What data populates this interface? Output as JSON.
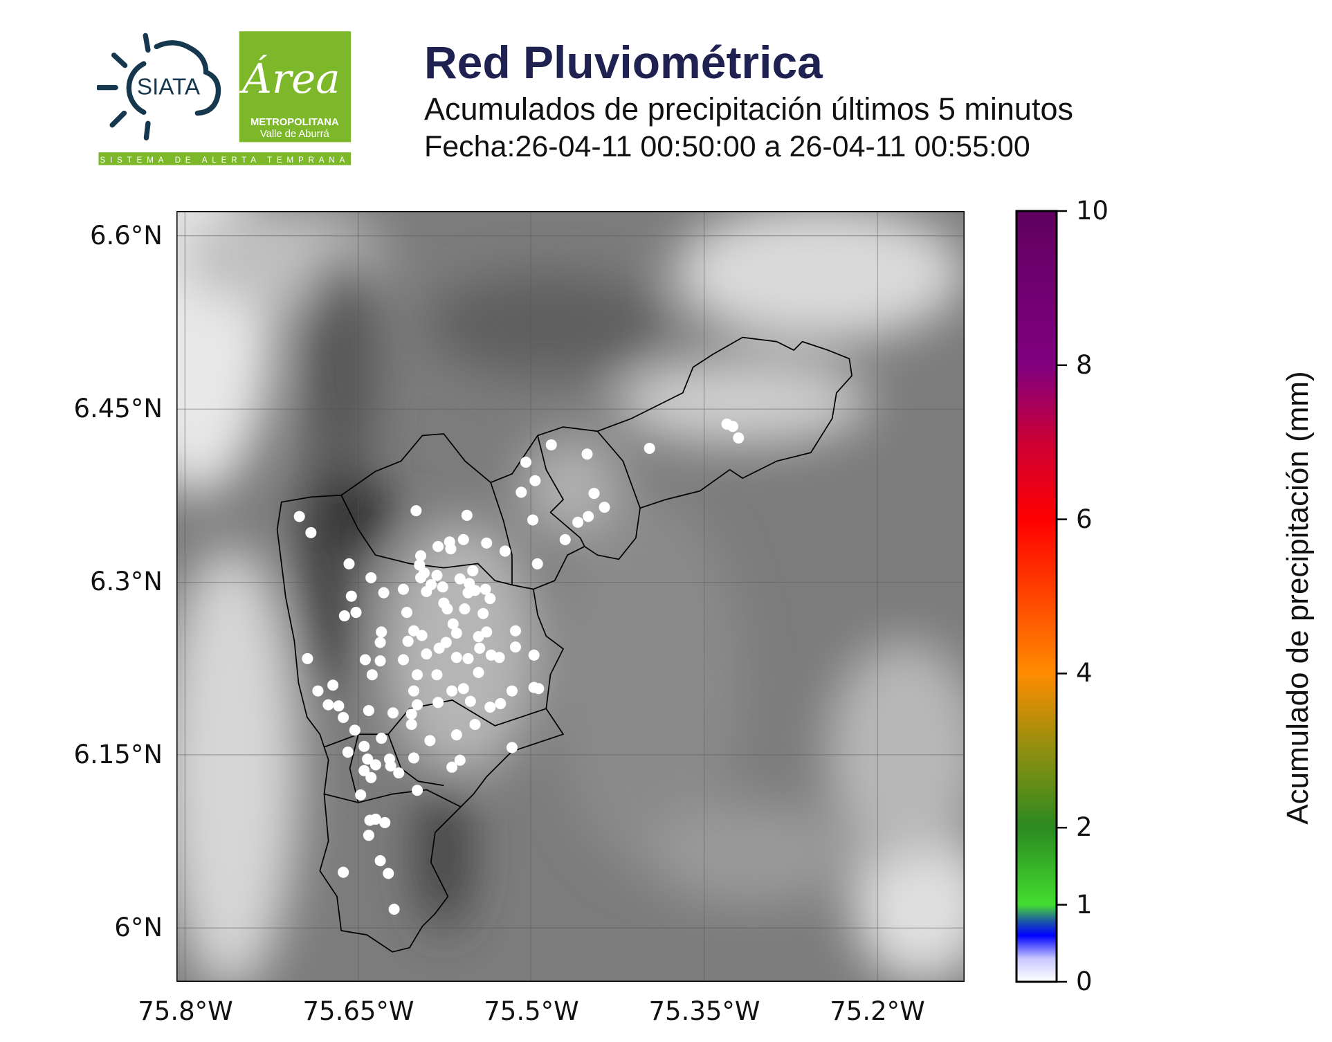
{
  "header": {
    "title": "Red Pluviométrica",
    "subtitle": "Acumulados de precipitación últimos 5 minutos",
    "date_range": "Fecha:26-04-11 00:50:00 a 26-04-11 00:55:00"
  },
  "logos": {
    "siata": "SIATA",
    "area_script": "Área",
    "area_line1": "METROPOLITANA",
    "area_line2": "Valle de Aburrá",
    "banner": "SISTEMA DE ALERTA TEMPRANA",
    "colors": {
      "siata_blue": "#16384f",
      "area_green": "#7cb82a"
    }
  },
  "chart_data": {
    "type": "scatter",
    "title": "Red Pluviométrica",
    "subtitle": "Acumulados de precipitación últimos 5 minutos",
    "background": "grayscale elevation map with watershed boundaries",
    "xlim": [
      -75.807,
      -75.125
    ],
    "ylim": [
      5.953,
      6.621
    ],
    "grid": true,
    "x_ticks": [
      -75.8,
      -75.65,
      -75.5,
      -75.35,
      -75.2
    ],
    "x_tick_labels": [
      "75.8°W",
      "75.65°W",
      "75.5°W",
      "75.35°W",
      "75.2°W"
    ],
    "y_ticks": [
      6.6,
      6.45,
      6.3,
      6.15,
      6.0
    ],
    "y_tick_labels": [
      "6.6°N",
      "6.45°N",
      "6.3°N",
      "6.15°N",
      "6°N"
    ],
    "colorbar": {
      "label": "Acumulado de precipitación (mm)",
      "range": [
        0,
        10
      ],
      "ticks": [
        0,
        1,
        2,
        4,
        6,
        8,
        10
      ],
      "tick_labels": [
        "0",
        "1",
        "2",
        "4",
        "6",
        "8",
        "10"
      ],
      "stops": [
        {
          "v": 0,
          "c": "#ffffff"
        },
        {
          "v": 0.3,
          "c": "#c8c8ff"
        },
        {
          "v": 0.6,
          "c": "#0000ff"
        },
        {
          "v": 0.8,
          "c": "#1f5fa0"
        },
        {
          "v": 1.0,
          "c": "#44dd30"
        },
        {
          "v": 2.0,
          "c": "#2a8a20"
        },
        {
          "v": 3.0,
          "c": "#8f8f10"
        },
        {
          "v": 4.0,
          "c": "#ff8c00"
        },
        {
          "v": 5.0,
          "c": "#ff4500"
        },
        {
          "v": 6.0,
          "c": "#ff0000"
        },
        {
          "v": 7.0,
          "c": "#cc0035"
        },
        {
          "v": 8.0,
          "c": "#800080"
        },
        {
          "v": 10.0,
          "c": "#600060"
        }
      ]
    },
    "station_value_mm": 0,
    "stations": [
      [
        -75.701,
        6.357
      ],
      [
        -75.691,
        6.343
      ],
      [
        -75.658,
        6.316
      ],
      [
        -75.639,
        6.304
      ],
      [
        -75.656,
        6.288
      ],
      [
        -75.662,
        6.271
      ],
      [
        -75.652,
        6.274
      ],
      [
        -75.628,
        6.291
      ],
      [
        -75.611,
        6.294
      ],
      [
        -75.6,
        6.362
      ],
      [
        -75.556,
        6.358
      ],
      [
        -75.596,
        6.323
      ],
      [
        -75.597,
        6.315
      ],
      [
        -75.581,
        6.331
      ],
      [
        -75.571,
        6.335
      ],
      [
        -75.559,
        6.337
      ],
      [
        -75.57,
        6.329
      ],
      [
        -75.539,
        6.334
      ],
      [
        -75.523,
        6.327
      ],
      [
        -75.509,
        6.378
      ],
      [
        -75.505,
        6.404
      ],
      [
        -75.497,
        6.388
      ],
      [
        -75.483,
        6.419
      ],
      [
        -75.452,
        6.411
      ],
      [
        -75.446,
        6.377
      ],
      [
        -75.437,
        6.365
      ],
      [
        -75.451,
        6.357
      ],
      [
        -75.46,
        6.352
      ],
      [
        -75.471,
        6.337
      ],
      [
        -75.499,
        6.354
      ],
      [
        -75.495,
        6.316
      ],
      [
        -75.398,
        6.416
      ],
      [
        -75.331,
        6.437
      ],
      [
        -75.326,
        6.435
      ],
      [
        -75.321,
        6.425
      ],
      [
        -75.694,
        6.234
      ],
      [
        -75.685,
        6.206
      ],
      [
        -75.672,
        6.211
      ],
      [
        -75.676,
        6.194
      ],
      [
        -75.667,
        6.193
      ],
      [
        -75.663,
        6.183
      ],
      [
        -75.653,
        6.172
      ],
      [
        -75.659,
        6.153
      ],
      [
        -75.645,
        6.158
      ],
      [
        -75.642,
        6.147
      ],
      [
        -75.635,
        6.142
      ],
      [
        -75.645,
        6.137
      ],
      [
        -75.639,
        6.131
      ],
      [
        -75.648,
        6.116
      ],
      [
        -75.64,
        6.094
      ],
      [
        -75.635,
        6.095
      ],
      [
        -75.627,
        6.092
      ],
      [
        -75.641,
        6.081
      ],
      [
        -75.631,
        6.059
      ],
      [
        -75.624,
        6.048
      ],
      [
        -75.663,
        6.049
      ],
      [
        -75.619,
        6.017
      ],
      [
        -75.644,
        6.233
      ],
      [
        -75.638,
        6.22
      ],
      [
        -75.631,
        6.232
      ],
      [
        -75.63,
        6.257
      ],
      [
        -75.631,
        6.248
      ],
      [
        -75.611,
        6.233
      ],
      [
        -75.608,
        6.274
      ],
      [
        -75.602,
        6.258
      ],
      [
        -75.607,
        6.249
      ],
      [
        -75.595,
        6.254
      ],
      [
        -75.591,
        6.238
      ],
      [
        -75.58,
        6.243
      ],
      [
        -75.574,
        6.248
      ],
      [
        -75.599,
        6.22
      ],
      [
        -75.602,
        6.206
      ],
      [
        -75.581,
        6.196
      ],
      [
        -75.599,
        6.194
      ],
      [
        -75.604,
        6.186
      ],
      [
        -75.604,
        6.177
      ],
      [
        -75.588,
        6.163
      ],
      [
        -75.569,
        6.14
      ],
      [
        -75.562,
        6.146
      ],
      [
        -75.565,
        6.168
      ],
      [
        -75.549,
        6.177
      ],
      [
        -75.536,
        6.192
      ],
      [
        -75.527,
        6.195
      ],
      [
        -75.517,
        6.206
      ],
      [
        -75.517,
        6.157
      ],
      [
        -75.498,
        6.209
      ],
      [
        -75.494,
        6.208
      ],
      [
        -75.498,
        6.237
      ],
      [
        -75.514,
        6.258
      ],
      [
        -75.514,
        6.244
      ],
      [
        -75.535,
        6.237
      ],
      [
        -75.539,
        6.257
      ],
      [
        -75.542,
        6.273
      ],
      [
        -75.536,
        6.286
      ],
      [
        -75.54,
        6.294
      ],
      [
        -75.555,
        6.291
      ],
      [
        -75.562,
        6.303
      ],
      [
        -75.577,
        6.296
      ],
      [
        -75.587,
        6.298
      ],
      [
        -75.591,
        6.292
      ],
      [
        -75.576,
        6.282
      ],
      [
        -75.573,
        6.277
      ],
      [
        -75.558,
        6.277
      ],
      [
        -75.554,
        6.299
      ],
      [
        -75.551,
        6.31
      ],
      [
        -75.549,
        6.293
      ],
      [
        -75.582,
        6.306
      ],
      [
        -75.596,
        6.304
      ],
      [
        -75.593,
        6.308
      ],
      [
        -75.63,
        6.165
      ],
      [
        -75.623,
        6.147
      ],
      [
        -75.622,
        6.141
      ],
      [
        -75.615,
        6.135
      ],
      [
        -75.602,
        6.148
      ],
      [
        -75.599,
        6.12
      ],
      [
        -75.641,
        6.189
      ],
      [
        -75.565,
        6.256
      ],
      [
        -75.565,
        6.235
      ],
      [
        -75.555,
        6.234
      ],
      [
        -75.546,
        6.253
      ],
      [
        -75.545,
        6.243
      ],
      [
        -75.528,
        6.235
      ],
      [
        -75.546,
        6.222
      ],
      [
        -75.559,
        6.208
      ],
      [
        -75.553,
        6.197
      ],
      [
        -75.569,
        6.206
      ],
      [
        -75.582,
        6.22
      ],
      [
        -75.568,
        6.264
      ],
      [
        -75.62,
        6.187
      ]
    ]
  }
}
